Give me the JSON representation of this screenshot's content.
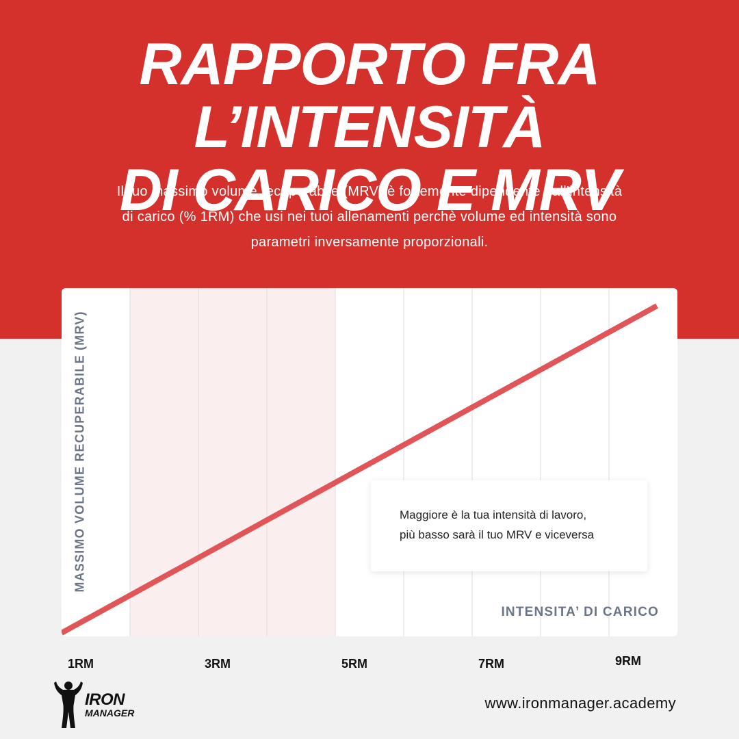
{
  "header": {
    "title_lines": [
      "RAPPORTO FRA L’INTENSITÀ",
      "DI CARICO E MRV"
    ],
    "subtitle_lines": [
      "Il tuo massimo volume recuperabile (MRV) è fortemente dipendente dall'intensità",
      "di carico (% 1RM) che usi nei tuoi allenamenti perchè volume ed intensità sono",
      "parametri inversamente proporzionali."
    ]
  },
  "colors": {
    "brand_red": "#d4302c",
    "line_red": "#e05558",
    "shade_pink": "#fbeeef",
    "axis_label_gray": "#6b7585"
  },
  "chart_data": {
    "type": "line",
    "xlabel": "INTENSITA’ DI CARICO",
    "ylabel": "MASSIMO VOLUME RECUPERABILE (MRV)",
    "x_tick_labels": [
      "1RM",
      "3RM",
      "5RM",
      "7RM",
      "9RM"
    ],
    "x_tick_values": [
      1,
      3,
      5,
      7,
      9
    ],
    "xlim": [
      1,
      9.7
    ],
    "ylim": [
      0,
      1
    ],
    "grid_vertical": true,
    "shaded_region_x": [
      2,
      5
    ],
    "series": [
      {
        "x": [
          1,
          9.7
        ],
        "y": [
          0,
          1
        ]
      }
    ],
    "annotation_lines": [
      "Maggiore è la tua intensità di lavoro,",
      "più basso sarà il tuo MRV e viceversa"
    ]
  },
  "footer": {
    "logo_line1": "IRON",
    "logo_line2": "MANAGER",
    "website": "www.ironmanager.academy"
  }
}
